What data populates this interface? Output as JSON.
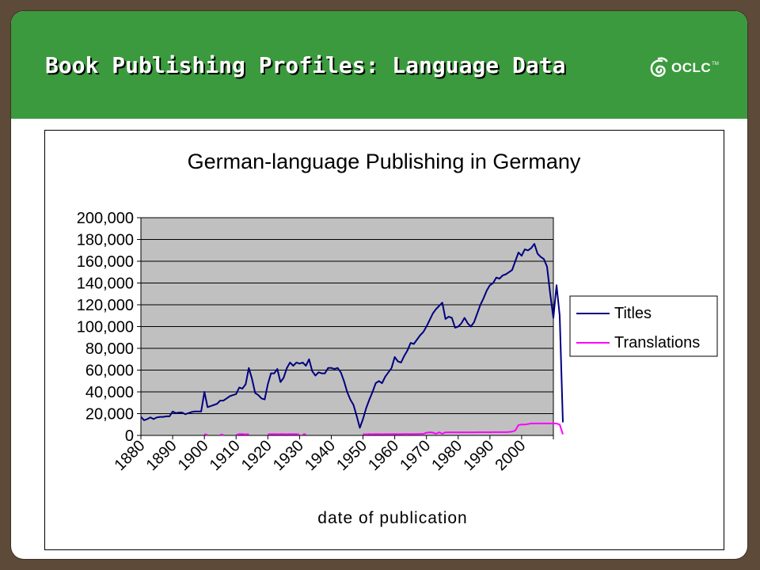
{
  "slide": {
    "title": "Book Publishing Profiles: Language Data",
    "logo_text": "OCLC",
    "logo_tm": "TM",
    "logo_icon": "oclc-logo-icon",
    "header_color": "#3b9a3d"
  },
  "chart_data": {
    "type": "line",
    "title": "German-language Publishing in Germany",
    "xlabel": "date of publication",
    "ylabel": "",
    "x_tick_labels": [
      "1880",
      "1890",
      "1900",
      "1910",
      "1920",
      "1930",
      "1940",
      "1950",
      "1960",
      "1970",
      "1980",
      "1990",
      "2000"
    ],
    "y_tick_labels": [
      "0",
      "20,000",
      "40,000",
      "60,000",
      "80,000",
      "100,000",
      "120,000",
      "140,000",
      "160,000",
      "180,000",
      "200,000"
    ],
    "xlim": [
      1880,
      2010
    ],
    "ylim": [
      0,
      200000
    ],
    "grid": "horizontal",
    "plot_background": "#c0c0c0",
    "legend_position": "right",
    "series": [
      {
        "name": "Titles",
        "color": "#000080",
        "points": [
          [
            1880,
            17000
          ],
          [
            1881,
            14000
          ],
          [
            1882,
            15000
          ],
          [
            1883,
            16500
          ],
          [
            1884,
            15000
          ],
          [
            1885,
            16500
          ],
          [
            1886,
            17000
          ],
          [
            1887,
            17000
          ],
          [
            1888,
            17500
          ],
          [
            1889,
            17500
          ],
          [
            1890,
            22000
          ],
          [
            1891,
            20500
          ],
          [
            1892,
            21000
          ],
          [
            1893,
            21000
          ],
          [
            1894,
            19500
          ],
          [
            1895,
            20500
          ],
          [
            1896,
            21500
          ],
          [
            1897,
            22000
          ],
          [
            1898,
            22000
          ],
          [
            1899,
            22000
          ],
          [
            1900,
            40000
          ],
          [
            1901,
            26000
          ],
          [
            1902,
            27000
          ],
          [
            1903,
            28000
          ],
          [
            1904,
            29000
          ],
          [
            1905,
            32000
          ],
          [
            1906,
            32000
          ],
          [
            1907,
            34000
          ],
          [
            1908,
            36000
          ],
          [
            1909,
            37000
          ],
          [
            1910,
            38000
          ],
          [
            1911,
            44000
          ],
          [
            1912,
            43000
          ],
          [
            1913,
            47000
          ],
          [
            1914,
            62000
          ],
          [
            1915,
            52000
          ],
          [
            1916,
            39000
          ],
          [
            1917,
            37000
          ],
          [
            1918,
            34000
          ],
          [
            1919,
            33000
          ],
          [
            1920,
            47000
          ],
          [
            1921,
            57000
          ],
          [
            1922,
            57000
          ],
          [
            1923,
            61000
          ],
          [
            1924,
            49000
          ],
          [
            1925,
            53000
          ],
          [
            1926,
            62000
          ],
          [
            1927,
            67000
          ],
          [
            1928,
            64000
          ],
          [
            1929,
            67000
          ],
          [
            1930,
            66000
          ],
          [
            1931,
            67000
          ],
          [
            1932,
            64000
          ],
          [
            1933,
            70000
          ],
          [
            1934,
            59000
          ],
          [
            1935,
            55000
          ],
          [
            1936,
            58000
          ],
          [
            1937,
            57000
          ],
          [
            1938,
            57000
          ],
          [
            1939,
            62000
          ],
          [
            1940,
            62000
          ],
          [
            1941,
            61000
          ],
          [
            1942,
            62000
          ],
          [
            1943,
            58000
          ],
          [
            1944,
            50000
          ],
          [
            1945,
            40000
          ],
          [
            1946,
            33000
          ],
          [
            1947,
            28000
          ],
          [
            1948,
            18000
          ],
          [
            1949,
            7000
          ],
          [
            1950,
            15000
          ],
          [
            1951,
            25000
          ],
          [
            1952,
            33000
          ],
          [
            1953,
            40000
          ],
          [
            1954,
            48000
          ],
          [
            1955,
            50000
          ],
          [
            1956,
            48000
          ],
          [
            1957,
            54000
          ],
          [
            1958,
            58000
          ],
          [
            1959,
            62000
          ],
          [
            1960,
            72000
          ],
          [
            1961,
            68000
          ],
          [
            1962,
            67000
          ],
          [
            1963,
            73000
          ],
          [
            1964,
            78000
          ],
          [
            1965,
            85000
          ],
          [
            1966,
            84000
          ],
          [
            1967,
            88000
          ],
          [
            1968,
            92000
          ],
          [
            1969,
            95000
          ],
          [
            1970,
            100000
          ],
          [
            1971,
            106000
          ],
          [
            1972,
            112000
          ],
          [
            1973,
            116000
          ],
          [
            1974,
            119000
          ],
          [
            1975,
            122000
          ],
          [
            1976,
            107000
          ],
          [
            1977,
            109000
          ],
          [
            1978,
            108000
          ],
          [
            1979,
            99000
          ],
          [
            1980,
            100000
          ],
          [
            1981,
            103000
          ],
          [
            1982,
            108000
          ],
          [
            1983,
            103000
          ],
          [
            1984,
            100000
          ],
          [
            1985,
            104000
          ],
          [
            1986,
            112000
          ],
          [
            1987,
            120000
          ],
          [
            1988,
            126000
          ],
          [
            1989,
            133000
          ],
          [
            1990,
            138000
          ],
          [
            1991,
            140000
          ],
          [
            1992,
            145000
          ],
          [
            1993,
            144000
          ],
          [
            1994,
            147000
          ],
          [
            1995,
            148000
          ],
          [
            1996,
            150000
          ],
          [
            1997,
            152000
          ],
          [
            1998,
            160000
          ],
          [
            1999,
            168000
          ],
          [
            2000,
            165000
          ],
          [
            2001,
            171000
          ],
          [
            2002,
            170000
          ],
          [
            2003,
            172000
          ],
          [
            2004,
            176000
          ],
          [
            2005,
            167000
          ],
          [
            2006,
            164000
          ],
          [
            2007,
            162000
          ],
          [
            2008,
            155000
          ],
          [
            2009,
            130000
          ],
          [
            2010,
            108000
          ],
          [
            2011,
            138000
          ],
          [
            2012,
            110000
          ],
          [
            2013,
            12000
          ]
        ]
      },
      {
        "name": "Translations",
        "color": "#ff00ff",
        "segments": [
          [
            [
              1900,
              1200
            ],
            [
              1901,
              500
            ]
          ],
          [
            [
              1905,
              800
            ],
            [
              1906,
              500
            ]
          ],
          [
            [
              1910,
              600
            ],
            [
              1911,
              1200
            ],
            [
              1912,
              1200
            ],
            [
              1913,
              900
            ],
            [
              1914,
              1200
            ]
          ],
          [
            [
              1920,
              1000
            ],
            [
              1921,
              1200
            ],
            [
              1922,
              1200
            ],
            [
              1923,
              1100
            ],
            [
              1924,
              1200
            ],
            [
              1925,
              1200
            ],
            [
              1926,
              1100
            ],
            [
              1927,
              1200
            ],
            [
              1928,
              1200
            ],
            [
              1929,
              1200
            ],
            [
              1930,
              800
            ]
          ],
          [
            [
              1931,
              1000
            ],
            [
              1932,
              1200
            ]
          ],
          [
            [
              1950,
              1200
            ],
            [
              1951,
              1000
            ],
            [
              1952,
              1200
            ],
            [
              1953,
              1100
            ],
            [
              1954,
              1200
            ],
            [
              1955,
              1200
            ],
            [
              1956,
              1100
            ],
            [
              1957,
              1200
            ],
            [
              1958,
              1200
            ],
            [
              1959,
              1200
            ],
            [
              1960,
              1300
            ],
            [
              1961,
              1200
            ],
            [
              1962,
              1200
            ],
            [
              1963,
              1300
            ],
            [
              1964,
              1300
            ],
            [
              1965,
              1200
            ],
            [
              1966,
              1300
            ],
            [
              1967,
              1300
            ],
            [
              1968,
              1400
            ],
            [
              1969,
              1400
            ],
            [
              1970,
              2500
            ],
            [
              1971,
              2800
            ],
            [
              1972,
              2600
            ],
            [
              1973,
              1500
            ],
            [
              1974,
              2800
            ],
            [
              1975,
              1500
            ],
            [
              1976,
              2800
            ],
            [
              1977,
              2800
            ],
            [
              1978,
              2800
            ],
            [
              1979,
              2800
            ],
            [
              1980,
              2800
            ],
            [
              1981,
              2800
            ],
            [
              1982,
              2800
            ],
            [
              1983,
              2800
            ],
            [
              1984,
              2800
            ],
            [
              1985,
              2800
            ],
            [
              1986,
              2900
            ],
            [
              1987,
              2900
            ],
            [
              1988,
              2900
            ],
            [
              1989,
              2900
            ],
            [
              1990,
              2900
            ],
            [
              1991,
              3000
            ],
            [
              1992,
              3000
            ],
            [
              1993,
              3000
            ],
            [
              1994,
              3000
            ],
            [
              1995,
              3000
            ],
            [
              1996,
              3200
            ],
            [
              1997,
              3500
            ],
            [
              1998,
              4500
            ],
            [
              1999,
              9500
            ],
            [
              2000,
              10000
            ],
            [
              2001,
              10000
            ],
            [
              2002,
              10500
            ],
            [
              2003,
              11000
            ],
            [
              2004,
              11000
            ],
            [
              2005,
              11000
            ],
            [
              2006,
              11000
            ],
            [
              2007,
              11000
            ],
            [
              2008,
              11000
            ],
            [
              2009,
              11000
            ],
            [
              2010,
              11000
            ],
            [
              2011,
              11000
            ],
            [
              2012,
              10000
            ],
            [
              2013,
              1000
            ]
          ]
        ]
      }
    ]
  }
}
